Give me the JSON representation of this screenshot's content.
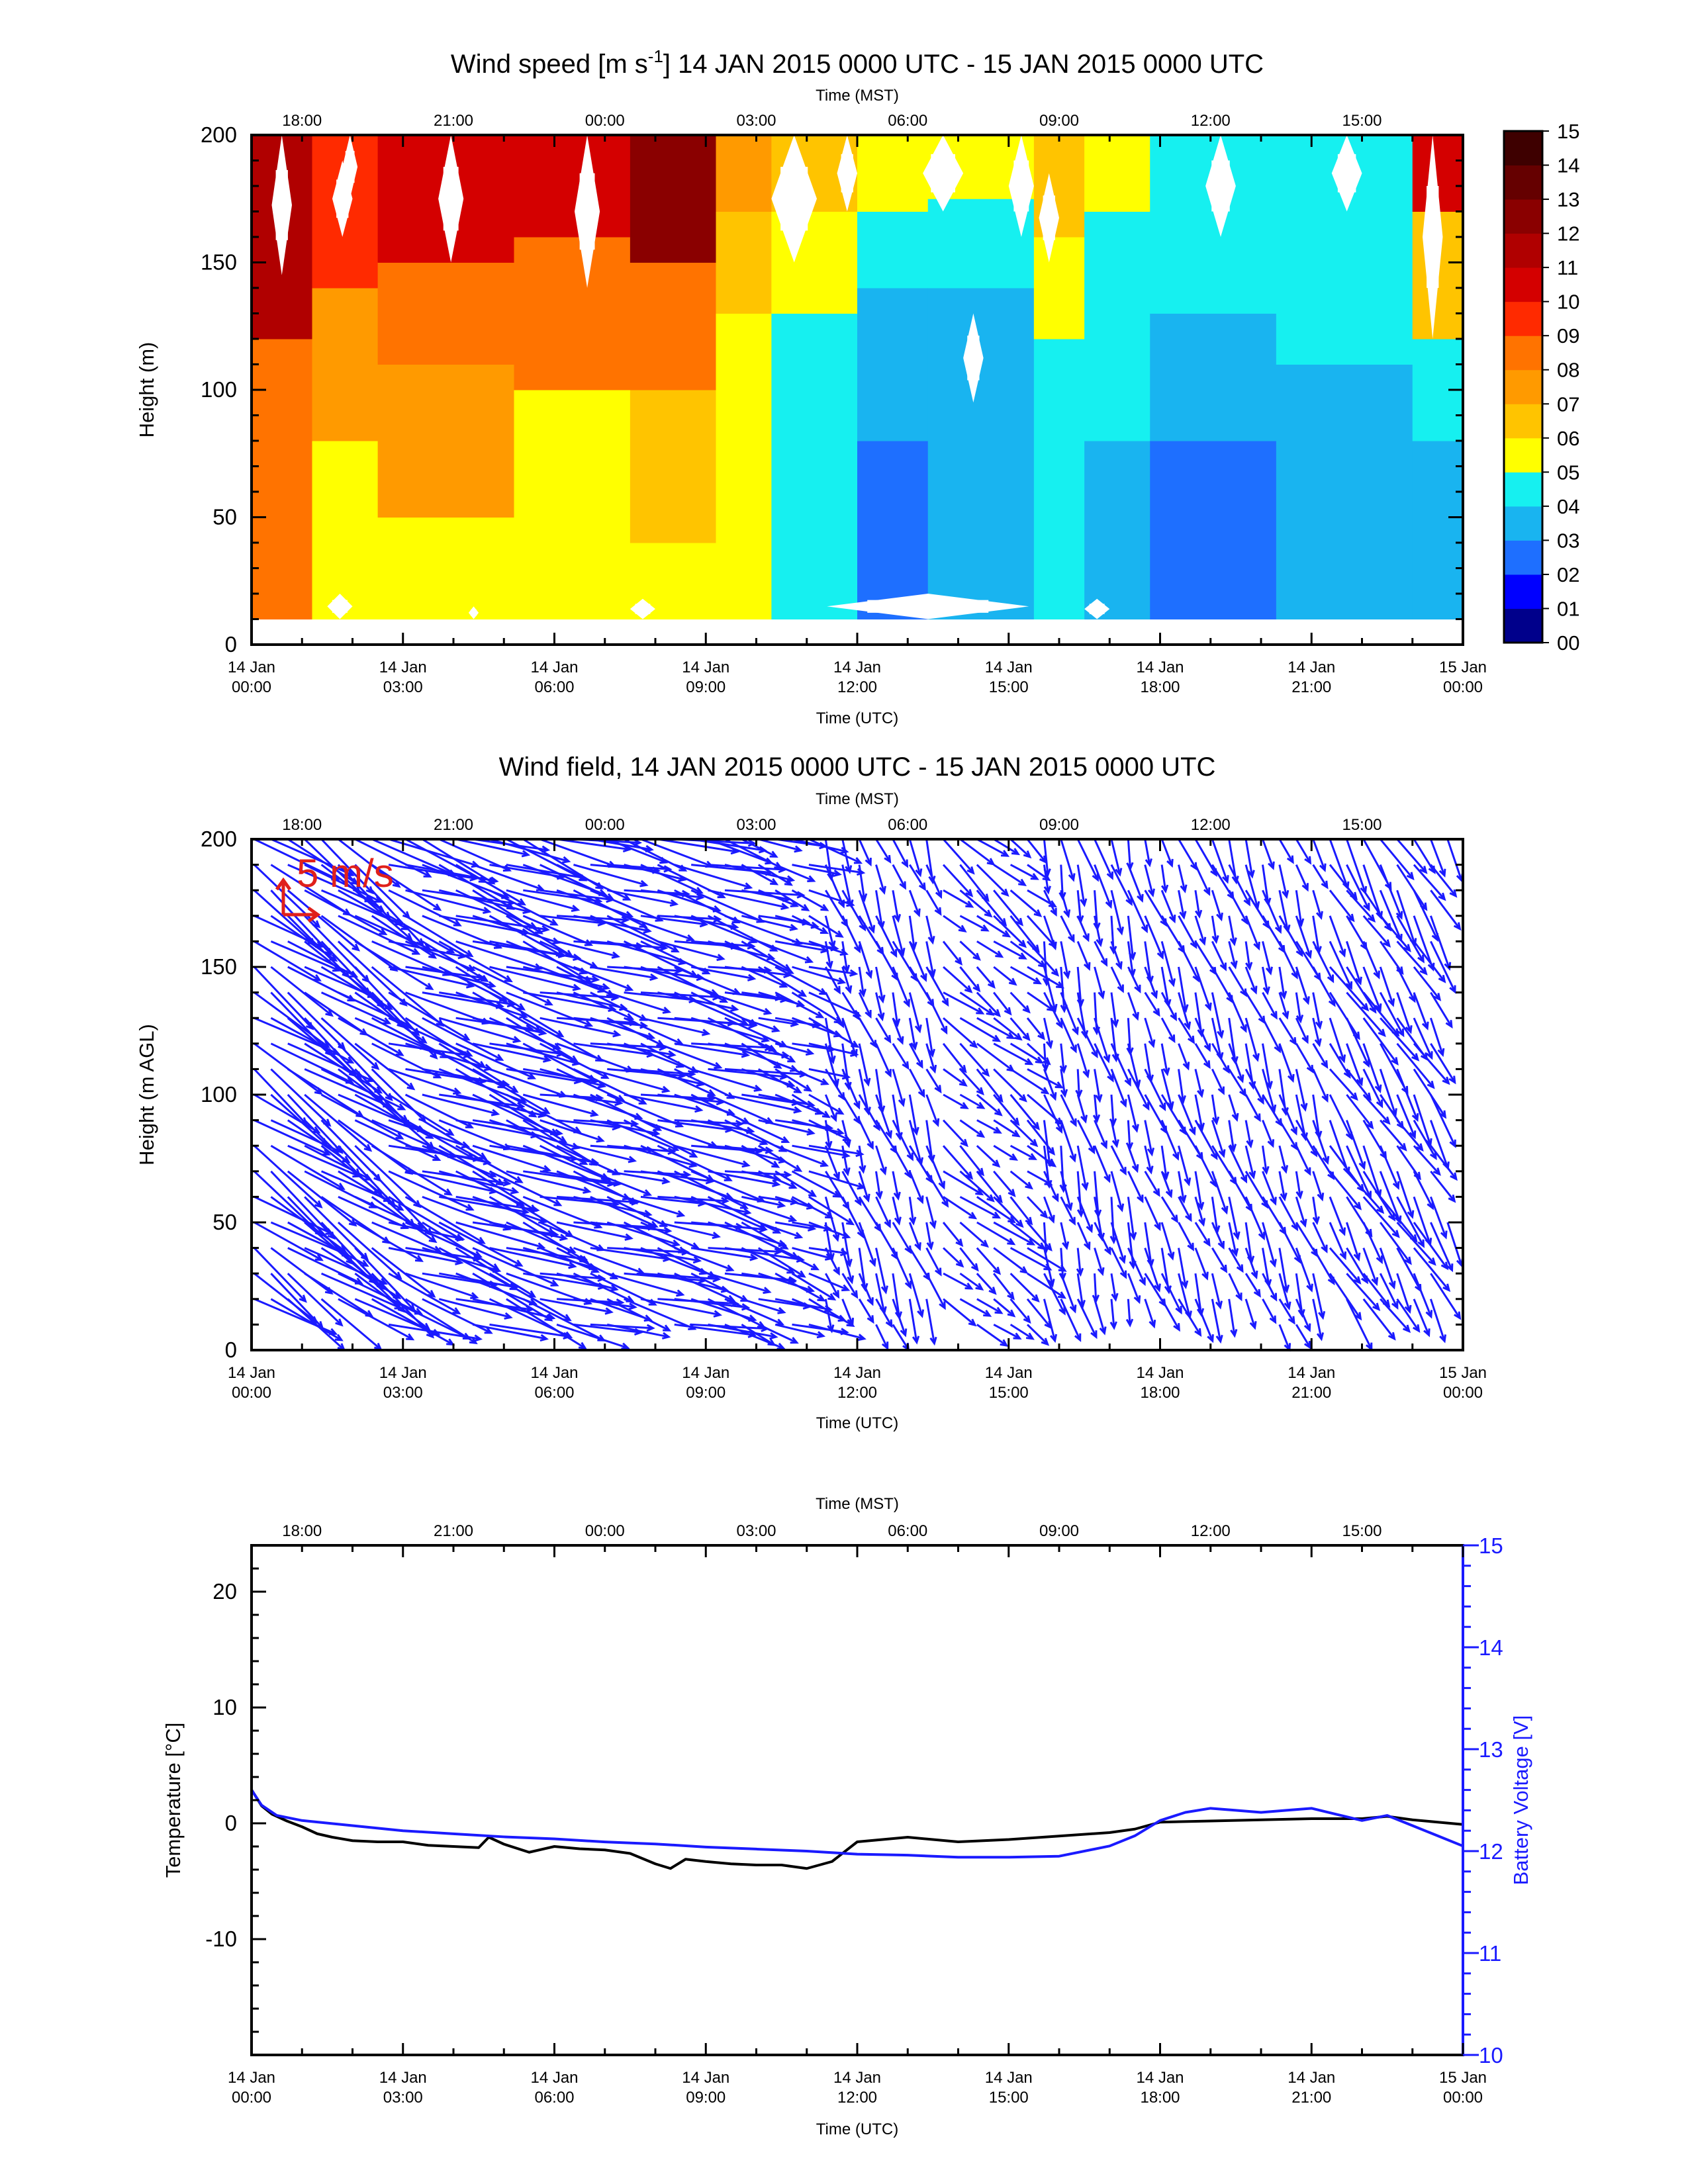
{
  "panel1": {
    "title_main": "Wind speed [m s",
    "title_sup": "-1",
    "title_rest": "] 14 JAN 2015 0000 UTC - 15 JAN 2015 0000 UTC",
    "top_axis_label": "Time (MST)",
    "ylabel": "Height (m)",
    "xlabel": "Time (UTC)"
  },
  "panel2": {
    "title": "Wind field, 14 JAN 2015 0000 UTC - 15 JAN 2015 0000 UTC",
    "top_axis_label": "Time (MST)",
    "ylabel": "Height (m AGL)",
    "xlabel": "Time (UTC)",
    "scale_label": "5 m/s"
  },
  "panel3": {
    "top_axis_label": "Time (MST)",
    "ylabel_left": "Temperature [°C]",
    "ylabel_right": "Battery Voltage [V]",
    "xlabel": "Time (UTC)"
  },
  "colors": {
    "temperature": "#000000",
    "voltage": "#1a1aff",
    "arrows": "#1a1aff",
    "scale_arrow": "#e0201b"
  },
  "chart_data": [
    {
      "type": "heatmap",
      "title": "Wind speed [m s-1] 14 JAN 2015 0000 UTC - 15 JAN 2015 0000 UTC",
      "xlabel": "Time (UTC)",
      "ylabel": "Height (m)",
      "top_xlabel": "Time (MST)",
      "xlim_hours": [
        0,
        24
      ],
      "ylim": [
        0,
        200
      ],
      "x_ticks_utc": [
        {
          "l1": "14 Jan",
          "l2": "00:00",
          "h": 0
        },
        {
          "l1": "14 Jan",
          "l2": "03:00",
          "h": 3
        },
        {
          "l1": "14 Jan",
          "l2": "06:00",
          "h": 6
        },
        {
          "l1": "14 Jan",
          "l2": "09:00",
          "h": 9
        },
        {
          "l1": "14 Jan",
          "l2": "12:00",
          "h": 12
        },
        {
          "l1": "14 Jan",
          "l2": "15:00",
          "h": 15
        },
        {
          "l1": "14 Jan",
          "l2": "18:00",
          "h": 18
        },
        {
          "l1": "14 Jan",
          "l2": "21:00",
          "h": 21
        },
        {
          "l1": "15 Jan",
          "l2": "00:00",
          "h": 24
        }
      ],
      "x_ticks_mst": [
        {
          "l": "18:00",
          "h": 1
        },
        {
          "l": "21:00",
          "h": 4
        },
        {
          "l": "00:00",
          "h": 7
        },
        {
          "l": "03:00",
          "h": 10
        },
        {
          "l": "06:00",
          "h": 13
        },
        {
          "l": "09:00",
          "h": 16
        },
        {
          "l": "12:00",
          "h": 19
        },
        {
          "l": "15:00",
          "h": 22
        }
      ],
      "y_ticks": [
        0,
        50,
        100,
        150,
        200
      ],
      "colorbar": {
        "labels": [
          "00",
          "01",
          "02",
          "03",
          "04",
          "05",
          "06",
          "07",
          "08",
          "09",
          "10",
          "11",
          "12",
          "13",
          "14",
          "15"
        ],
        "colors": [
          "#00008b",
          "#0000ff",
          "#1e6fff",
          "#19b4f0",
          "#16f0f0",
          "#ffff00",
          "#ffc400",
          "#ff9a00",
          "#ff7300",
          "#ff2a00",
          "#d40000",
          "#b00000",
          "#8a0000",
          "#650000",
          "#3e0000"
        ]
      },
      "segments": [
        {
          "x0": 0,
          "x1": 1.2,
          "bands": [
            [
              10,
              60,
              8
            ],
            [
              60,
              120,
              8
            ],
            [
              120,
              200,
              11
            ]
          ]
        },
        {
          "x0": 1.2,
          "x1": 2.5,
          "bands": [
            [
              10,
              80,
              5
            ],
            [
              80,
              140,
              7
            ],
            [
              140,
              200,
              9
            ]
          ]
        },
        {
          "x0": 2.5,
          "x1": 5.2,
          "bands": [
            [
              10,
              50,
              5
            ],
            [
              50,
              110,
              7
            ],
            [
              110,
              150,
              8
            ],
            [
              150,
              200,
              10
            ]
          ]
        },
        {
          "x0": 5.2,
          "x1": 7.5,
          "bands": [
            [
              10,
              40,
              5
            ],
            [
              40,
              100,
              5
            ],
            [
              100,
              160,
              8
            ],
            [
              160,
              200,
              10
            ]
          ]
        },
        {
          "x0": 7.5,
          "x1": 9.2,
          "bands": [
            [
              10,
              40,
              5
            ],
            [
              40,
              100,
              6
            ],
            [
              100,
              150,
              8
            ],
            [
              150,
              200,
              12
            ]
          ]
        },
        {
          "x0": 9.2,
          "x1": 10.3,
          "bands": [
            [
              10,
              80,
              5
            ],
            [
              80,
              130,
              5
            ],
            [
              130,
              170,
              6
            ],
            [
              170,
              200,
              7
            ]
          ]
        },
        {
          "x0": 10.3,
          "x1": 12.0,
          "bands": [
            [
              10,
              80,
              4
            ],
            [
              80,
              130,
              4
            ],
            [
              130,
              170,
              5
            ],
            [
              170,
              200,
              6
            ]
          ]
        },
        {
          "x0": 12.0,
          "x1": 13.4,
          "bands": [
            [
              10,
              80,
              2
            ],
            [
              80,
              140,
              3
            ],
            [
              140,
              170,
              4
            ],
            [
              170,
              200,
              5
            ]
          ]
        },
        {
          "x0": 13.4,
          "x1": 15.5,
          "bands": [
            [
              10,
              90,
              3
            ],
            [
              90,
              140,
              3
            ],
            [
              140,
              175,
              4
            ],
            [
              175,
              200,
              5
            ]
          ]
        },
        {
          "x0": 15.5,
          "x1": 16.5,
          "bands": [
            [
              10,
              60,
              4
            ],
            [
              60,
              120,
              4
            ],
            [
              120,
              160,
              5
            ],
            [
              160,
              200,
              6
            ]
          ]
        },
        {
          "x0": 16.5,
          "x1": 17.8,
          "bands": [
            [
              10,
              80,
              3
            ],
            [
              80,
              140,
              4
            ],
            [
              140,
              170,
              4
            ],
            [
              170,
              200,
              5
            ]
          ]
        },
        {
          "x0": 17.8,
          "x1": 20.3,
          "bands": [
            [
              10,
              80,
              2
            ],
            [
              80,
              130,
              3
            ],
            [
              130,
              170,
              4
            ],
            [
              170,
              200,
              4
            ]
          ]
        },
        {
          "x0": 20.3,
          "x1": 23.0,
          "bands": [
            [
              10,
              60,
              3
            ],
            [
              60,
              110,
              3
            ],
            [
              110,
              160,
              4
            ],
            [
              160,
              200,
              4
            ]
          ]
        },
        {
          "x0": 23.0,
          "x1": 24.0,
          "bands": [
            [
              10,
              80,
              3
            ],
            [
              80,
              120,
              4
            ],
            [
              120,
              170,
              6
            ],
            [
              170,
              200,
              10
            ]
          ]
        }
      ],
      "missing_regions": [
        [
          1.6,
          2.0,
          160,
          190
        ],
        [
          0.4,
          0.8,
          145,
          200
        ],
        [
          1.8,
          2.1,
          175,
          200
        ],
        [
          3.7,
          4.2,
          150,
          200
        ],
        [
          6.4,
          6.9,
          140,
          200
        ],
        [
          10.3,
          11.2,
          150,
          200
        ],
        [
          11.6,
          12.0,
          170,
          200
        ],
        [
          13.3,
          14.1,
          170,
          200
        ],
        [
          15.0,
          15.5,
          160,
          200
        ],
        [
          15.6,
          16.0,
          150,
          185
        ],
        [
          14.1,
          14.5,
          95,
          130
        ],
        [
          18.9,
          19.5,
          160,
          200
        ],
        [
          21.4,
          22.0,
          170,
          200
        ],
        [
          23.2,
          23.6,
          120,
          200
        ],
        [
          1.5,
          2.0,
          10,
          20
        ],
        [
          4.3,
          4.5,
          10,
          15
        ],
        [
          7.5,
          8.0,
          10,
          18
        ],
        [
          11.4,
          15.4,
          10,
          20
        ],
        [
          16.5,
          17.0,
          10,
          18
        ]
      ]
    },
    {
      "type": "quiver",
      "title": "Wind field, 14 JAN 2015 0000 UTC - 15 JAN 2015 0000 UTC",
      "xlabel": "Time (UTC)",
      "ylabel": "Height (m AGL)",
      "top_xlabel": "Time (MST)",
      "xlim_hours": [
        0,
        24
      ],
      "ylim": [
        0,
        200
      ],
      "y_ticks": [
        0,
        50,
        100,
        150,
        200
      ],
      "scale_label": "5 m/s",
      "heights": [
        10,
        20,
        30,
        40,
        50,
        60,
        70,
        80,
        90,
        100,
        110,
        120,
        130,
        140,
        150,
        160,
        170,
        180,
        190,
        200
      ],
      "regimes": [
        {
          "x0": 0,
          "x1": 2.5,
          "dir_deg": -35,
          "len": 7
        },
        {
          "x0": 2.5,
          "x1": 5.5,
          "dir_deg": -20,
          "len": 7
        },
        {
          "x0": 5.5,
          "x1": 9.5,
          "dir_deg": -15,
          "len": 6
        },
        {
          "x0": 9.5,
          "x1": 11.0,
          "dir_deg": -20,
          "len": 4
        },
        {
          "x0": 11.0,
          "x1": 13.5,
          "dir_deg": -70,
          "len": 3
        },
        {
          "x0": 13.5,
          "x1": 15.5,
          "dir_deg": -40,
          "len": 3
        },
        {
          "x0": 15.5,
          "x1": 17.5,
          "dir_deg": -75,
          "len": 3
        },
        {
          "x0": 17.5,
          "x1": 21.0,
          "dir_deg": -70,
          "len": 3
        },
        {
          "x0": 21.0,
          "x1": 24.0,
          "dir_deg": -60,
          "len": 4
        }
      ]
    },
    {
      "type": "line",
      "xlabel": "Time (UTC)",
      "ylabel": "Temperature [°C]",
      "ylabel_right": "Battery Voltage [V]",
      "top_xlabel": "Time (MST)",
      "xlim_hours": [
        0,
        24
      ],
      "ylim": [
        -20,
        24
      ],
      "ylim_right": [
        10,
        15
      ],
      "y_ticks": [
        -10,
        0,
        10,
        20
      ],
      "y_ticks_right": [
        10,
        11,
        12,
        13,
        14,
        15
      ],
      "series": [
        {
          "name": "",
          "axis": "left",
          "x": [
            0,
            0.2,
            0.4,
            0.7,
            1.0,
            1.3,
            1.6,
            2.0,
            2.5,
            3.0,
            3.5,
            4.0,
            4.5,
            4.7,
            5.0,
            5.5,
            6.0,
            6.5,
            7.0,
            7.5,
            8.0,
            8.3,
            8.6,
            9.0,
            9.5,
            10.0,
            10.5,
            11.0,
            11.5,
            12.0,
            13.0,
            14.0,
            15.0,
            16.0,
            17.0,
            17.5,
            18.0,
            19.0,
            20.0,
            21.0,
            22.0,
            22.5,
            23.0,
            23.5,
            24.0
          ],
          "values": [
            2.9,
            1.5,
            0.8,
            0.2,
            -0.3,
            -0.9,
            -1.2,
            -1.5,
            -1.6,
            -1.6,
            -1.9,
            -2.0,
            -2.1,
            -1.2,
            -1.8,
            -2.5,
            -2.0,
            -2.2,
            -2.3,
            -2.6,
            -3.5,
            -3.9,
            -3.1,
            -3.3,
            -3.5,
            -3.6,
            -3.6,
            -3.9,
            -3.3,
            -1.6,
            -1.2,
            -1.6,
            -1.4,
            -1.1,
            -0.8,
            -0.5,
            0.1,
            0.2,
            0.3,
            0.4,
            0.4,
            0.6,
            0.3,
            0.1,
            -0.1
          ]
        },
        {
          "name": "",
          "axis": "right",
          "x": [
            0,
            0.2,
            0.5,
            1.0,
            2.0,
            3.0,
            4.0,
            5.0,
            6.0,
            7.0,
            8.0,
            9.0,
            10.0,
            11.0,
            12.0,
            13.0,
            14.0,
            15.0,
            16.0,
            17.0,
            17.5,
            18.0,
            18.5,
            19.0,
            19.5,
            20.0,
            20.5,
            21.0,
            21.5,
            22.0,
            22.5,
            23.0,
            23.5,
            24.0
          ],
          "values": [
            12.6,
            12.45,
            12.35,
            12.3,
            12.25,
            12.2,
            12.17,
            12.14,
            12.12,
            12.09,
            12.07,
            12.04,
            12.02,
            12.0,
            11.97,
            11.96,
            11.94,
            11.94,
            11.95,
            12.05,
            12.15,
            12.3,
            12.38,
            12.42,
            12.4,
            12.38,
            12.4,
            12.42,
            12.36,
            12.3,
            12.35,
            12.25,
            12.15,
            12.05
          ]
        }
      ]
    }
  ]
}
